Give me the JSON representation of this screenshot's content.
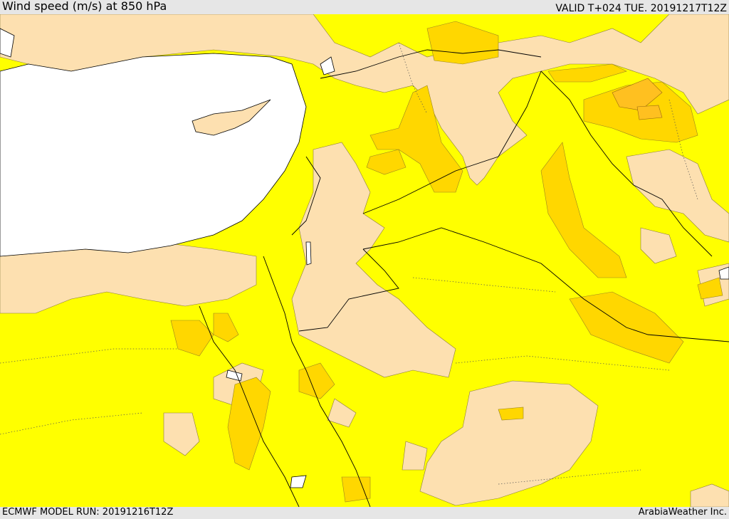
{
  "header": {
    "title": "Wind speed (m/s) at 850 hPa",
    "valid": "VALID T+024 TUE. 20191217T12Z"
  },
  "footer": {
    "model_run": "ECMWF MODEL RUN: 20191216T12Z",
    "credit": "ArabiaWeather Inc."
  },
  "colors": {
    "water": "#ffffff",
    "calm": "#fde0b0",
    "light": "#ffff00",
    "moderate": "#ffd700",
    "strong": "#ffc020",
    "border": "#000000"
  }
}
